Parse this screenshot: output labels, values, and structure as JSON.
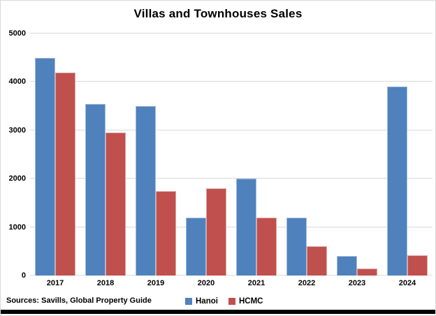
{
  "chart_data": {
    "type": "bar",
    "title": "Villas and Townhouses Sales",
    "categories": [
      "2017",
      "2018",
      "2019",
      "2020",
      "2021",
      "2022",
      "2023",
      "2024"
    ],
    "series": [
      {
        "name": "Hanoi",
        "color": "#4F81BD",
        "border_color": "#A3BDDC",
        "values": [
          4500,
          3550,
          3500,
          1200,
          2000,
          1200,
          400,
          3900
        ]
      },
      {
        "name": "HCMC",
        "color": "#C0504D",
        "border_color": "#DCA3A1",
        "values": [
          4200,
          2950,
          1750,
          1800,
          1200,
          600,
          150,
          420
        ]
      }
    ],
    "xlabel": "",
    "ylabel": "",
    "ylim": [
      0,
      5000
    ],
    "yticks": [
      0,
      1000,
      2000,
      3000,
      4000,
      5000
    ],
    "grid": "horizontal",
    "gridline_color": "#d9d9d9",
    "legend_position": "bottom"
  },
  "source_note": "Sources: Savills, Global Property Guide"
}
